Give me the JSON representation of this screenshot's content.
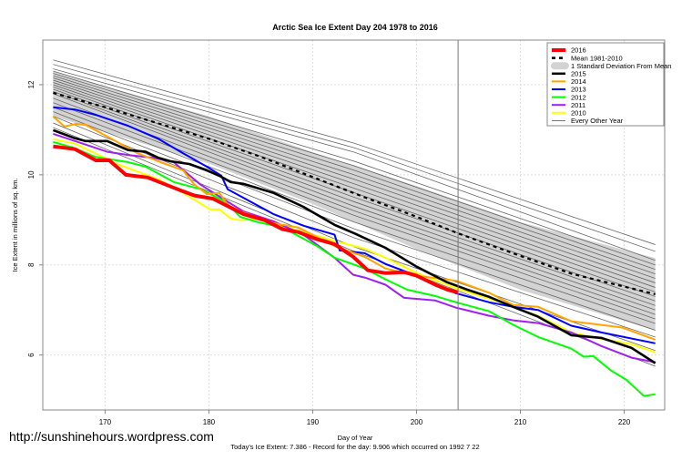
{
  "chart_data": {
    "type": "line",
    "title": "Arctic Sea Ice Extent Day 204 1978 to 2016",
    "xlabel": "Day of Year",
    "ylabel": "Ice Extent in millions of sq. km.",
    "subtitle": "Today's Ice Extent: 7.386  - Record for the day: 9.906 which occurred on 1992 7 22",
    "xlim": [
      164.0,
      223.9
    ],
    "ylim": [
      4.78,
      12.99
    ],
    "xticks": [
      170,
      180,
      190,
      200,
      210,
      220
    ],
    "yticks": [
      6,
      8,
      10,
      12
    ],
    "grid": true,
    "legend_position": "top-right",
    "marker_day": 204,
    "sd_band": {
      "name": "1 Standard Deviation From Mean",
      "color": "#d3d3d3",
      "upper": [
        [
          165,
          12.3
        ],
        [
          180,
          11.3
        ],
        [
          190,
          10.5
        ],
        [
          200,
          9.75
        ],
        [
          210,
          8.95
        ],
        [
          223,
          8.15
        ]
      ],
      "lower": [
        [
          165,
          11.3
        ],
        [
          180,
          10.25
        ],
        [
          190,
          9.35
        ],
        [
          200,
          8.35
        ],
        [
          210,
          7.45
        ],
        [
          223,
          6.55
        ]
      ]
    },
    "other_years": {
      "name": "Every Other Year",
      "color": "#555555",
      "days": [
        165,
        194,
        223
      ],
      "lines": [
        [
          12.55,
          10.7,
          8.45
        ],
        [
          12.45,
          10.6,
          8.3
        ],
        [
          12.35,
          10.5,
          8.1
        ],
        [
          12.3,
          10.3,
          8.0
        ],
        [
          12.25,
          10.2,
          7.9
        ],
        [
          12.2,
          10.1,
          7.8
        ],
        [
          12.15,
          10.0,
          7.7
        ],
        [
          12.1,
          9.9,
          7.6
        ],
        [
          12.05,
          9.8,
          7.5
        ],
        [
          12.0,
          9.7,
          7.4
        ],
        [
          11.95,
          9.6,
          7.3
        ],
        [
          11.9,
          9.5,
          7.2
        ],
        [
          11.85,
          9.4,
          7.1
        ],
        [
          11.8,
          9.3,
          7.0
        ],
        [
          11.7,
          9.2,
          6.9
        ],
        [
          11.6,
          9.1,
          6.8
        ],
        [
          11.5,
          8.95,
          6.7
        ],
        [
          11.4,
          8.8,
          6.55
        ],
        [
          11.3,
          8.6,
          6.4
        ],
        [
          11.15,
          8.4,
          6.1
        ],
        [
          11.05,
          8.3,
          5.75
        ]
      ]
    },
    "mean": {
      "name": "Mean 1981-2010",
      "color": "#000000",
      "points": [
        [
          165,
          11.82
        ],
        [
          170,
          11.5
        ],
        [
          175,
          11.15
        ],
        [
          180,
          10.8
        ],
        [
          185,
          10.4
        ],
        [
          190,
          9.95
        ],
        [
          195,
          9.5
        ],
        [
          200,
          9.07
        ],
        [
          204,
          8.7
        ],
        [
          210,
          8.2
        ],
        [
          215,
          7.8
        ],
        [
          223,
          7.35
        ]
      ]
    },
    "series": [
      {
        "name": "2010",
        "color": "#ffff00",
        "width": 2,
        "points": [
          [
            165,
            10.79
          ],
          [
            167.1,
            10.69
          ],
          [
            169,
            10.48
          ],
          [
            171.1,
            10.24
          ],
          [
            172.8,
            10.1
          ],
          [
            175.1,
            9.9
          ],
          [
            177.2,
            9.64
          ],
          [
            178.9,
            9.4
          ],
          [
            180.1,
            9.23
          ],
          [
            181,
            9.23
          ],
          [
            182.1,
            9.03
          ],
          [
            183,
            8.99
          ],
          [
            184.7,
            9.03
          ],
          [
            189.1,
            8.73
          ],
          [
            192.1,
            8.53
          ],
          [
            195,
            8.36
          ],
          [
            197,
            8.16
          ],
          [
            200,
            7.82
          ],
          [
            203.8,
            7.48
          ],
          [
            207,
            7.25
          ],
          [
            209.3,
            7.07
          ],
          [
            211.7,
            6.87
          ],
          [
            214.9,
            6.5
          ],
          [
            217.8,
            6.36
          ],
          [
            220.7,
            6.24
          ],
          [
            223,
            6.06
          ]
        ]
      },
      {
        "name": "2011",
        "color": "#a020f0",
        "width": 2,
        "points": [
          [
            165,
            10.91
          ],
          [
            167.1,
            10.75
          ],
          [
            170.2,
            10.51
          ],
          [
            172.2,
            10.44
          ],
          [
            174.6,
            10.38
          ],
          [
            176.6,
            10.28
          ],
          [
            179.2,
            9.78
          ],
          [
            181.6,
            9.43
          ],
          [
            183.3,
            9.19
          ],
          [
            186.2,
            8.97
          ],
          [
            189.1,
            8.67
          ],
          [
            192.1,
            8.16
          ],
          [
            193.9,
            7.78
          ],
          [
            195,
            7.72
          ],
          [
            197,
            7.56
          ],
          [
            198.8,
            7.27
          ],
          [
            201.8,
            7.21
          ],
          [
            203.8,
            7.05
          ],
          [
            207,
            6.87
          ],
          [
            209.3,
            6.77
          ],
          [
            211.7,
            6.71
          ],
          [
            214.9,
            6.5
          ],
          [
            217.8,
            6.2
          ],
          [
            220.7,
            5.94
          ],
          [
            223,
            5.84
          ]
        ]
      },
      {
        "name": "2012",
        "color": "#00ff00",
        "width": 2,
        "points": [
          [
            165,
            10.73
          ],
          [
            167.1,
            10.59
          ],
          [
            169,
            10.4
          ],
          [
            172.2,
            10.28
          ],
          [
            173.9,
            10.18
          ],
          [
            176.6,
            9.84
          ],
          [
            179.2,
            9.68
          ],
          [
            181.6,
            9.4
          ],
          [
            183,
            9.07
          ],
          [
            184.7,
            8.95
          ],
          [
            187.1,
            8.83
          ],
          [
            190.4,
            8.42
          ],
          [
            192.1,
            8.16
          ],
          [
            195,
            7.92
          ],
          [
            197,
            7.68
          ],
          [
            199.1,
            7.45
          ],
          [
            201.8,
            7.31
          ],
          [
            203.8,
            7.17
          ],
          [
            207,
            6.97
          ],
          [
            209.3,
            6.67
          ],
          [
            211.7,
            6.4
          ],
          [
            214.9,
            6.14
          ],
          [
            216.1,
            5.96
          ],
          [
            217,
            5.98
          ],
          [
            218.7,
            5.66
          ],
          [
            220.2,
            5.45
          ],
          [
            221.9,
            5.09
          ],
          [
            223,
            5.13
          ]
        ]
      },
      {
        "name": "2013",
        "color": "#0000ff",
        "width": 2,
        "points": [
          [
            165,
            11.5
          ],
          [
            167.1,
            11.45
          ],
          [
            169.1,
            11.33
          ],
          [
            172.2,
            11.09
          ],
          [
            175.1,
            10.8
          ],
          [
            177.5,
            10.48
          ],
          [
            179.8,
            10.18
          ],
          [
            181.2,
            9.98
          ],
          [
            181.8,
            9.68
          ],
          [
            186.2,
            9.13
          ],
          [
            189.1,
            8.87
          ],
          [
            192.1,
            8.67
          ],
          [
            192.6,
            8.32
          ],
          [
            195,
            8.26
          ],
          [
            197,
            8.02
          ],
          [
            200,
            7.76
          ],
          [
            203.8,
            7.37
          ],
          [
            207,
            7.17
          ],
          [
            209.3,
            7.07
          ],
          [
            211.7,
            7.0
          ],
          [
            214.9,
            6.65
          ],
          [
            217.8,
            6.5
          ],
          [
            223,
            6.26
          ]
        ]
      },
      {
        "name": "2014",
        "color": "#ffa500",
        "width": 2,
        "points": [
          [
            165,
            11.29
          ],
          [
            166.1,
            11.07
          ],
          [
            167.2,
            11.13
          ],
          [
            168.1,
            11.11
          ],
          [
            170.2,
            10.85
          ],
          [
            173.1,
            10.48
          ],
          [
            175.1,
            10.3
          ],
          [
            177.5,
            10.1
          ],
          [
            178.6,
            9.78
          ],
          [
            179.8,
            9.57
          ],
          [
            181,
            9.6
          ],
          [
            181.8,
            9.33
          ],
          [
            183,
            9.19
          ],
          [
            186.2,
            8.93
          ],
          [
            188.6,
            8.83
          ],
          [
            192.1,
            8.42
          ],
          [
            195,
            8.18
          ],
          [
            197,
            7.92
          ],
          [
            200,
            7.76
          ],
          [
            203.8,
            7.65
          ],
          [
            207,
            7.38
          ],
          [
            209.3,
            7.11
          ],
          [
            211.7,
            7.07
          ],
          [
            214.9,
            6.75
          ],
          [
            219.8,
            6.61
          ],
          [
            223,
            6.34
          ]
        ]
      },
      {
        "name": "2015",
        "color": "#000000",
        "width": 2.6,
        "points": [
          [
            165,
            10.99
          ],
          [
            167.1,
            10.81
          ],
          [
            168.1,
            10.75
          ],
          [
            170.2,
            10.75
          ],
          [
            172.2,
            10.55
          ],
          [
            173.9,
            10.51
          ],
          [
            175.1,
            10.38
          ],
          [
            176.3,
            10.3
          ],
          [
            178.1,
            10.24
          ],
          [
            179.8,
            10.1
          ],
          [
            181,
            9.98
          ],
          [
            182.1,
            9.84
          ],
          [
            183.3,
            9.8
          ],
          [
            186.2,
            9.6
          ],
          [
            189.1,
            9.29
          ],
          [
            192.1,
            8.89
          ],
          [
            194.1,
            8.69
          ],
          [
            197,
            8.38
          ],
          [
            200,
            7.96
          ],
          [
            202.9,
            7.62
          ],
          [
            204.9,
            7.45
          ],
          [
            207,
            7.29
          ],
          [
            209.3,
            7.07
          ],
          [
            211.7,
            6.85
          ],
          [
            214.9,
            6.44
          ],
          [
            217.8,
            6.38
          ],
          [
            220.7,
            6.16
          ],
          [
            223,
            5.82
          ]
        ]
      },
      {
        "name": "2016",
        "color": "#ff0000",
        "width": 4,
        "points": [
          [
            165,
            10.63
          ],
          [
            167.1,
            10.57
          ],
          [
            169.1,
            10.32
          ],
          [
            170.4,
            10.32
          ],
          [
            172,
            10.0
          ],
          [
            174.1,
            9.94
          ],
          [
            177.2,
            9.66
          ],
          [
            178.6,
            9.54
          ],
          [
            180.4,
            9.47
          ],
          [
            183.3,
            9.13
          ],
          [
            185.4,
            8.99
          ],
          [
            187.1,
            8.79
          ],
          [
            188.6,
            8.73
          ],
          [
            190.4,
            8.57
          ],
          [
            192.1,
            8.46
          ],
          [
            193.9,
            8.18
          ],
          [
            195.3,
            7.88
          ],
          [
            197,
            7.82
          ],
          [
            198.8,
            7.84
          ],
          [
            200,
            7.76
          ],
          [
            201.8,
            7.56
          ],
          [
            203,
            7.45
          ],
          [
            204,
            7.39
          ]
        ]
      }
    ],
    "legend": [
      "2016",
      "Mean 1981-2010",
      "1 Standard Deviation From Mean",
      "2015",
      "2014",
      "2013",
      "2012",
      "2011",
      "2010",
      "Every Other Year"
    ]
  },
  "watermark": "http://sunshinehours.wordpress.com"
}
